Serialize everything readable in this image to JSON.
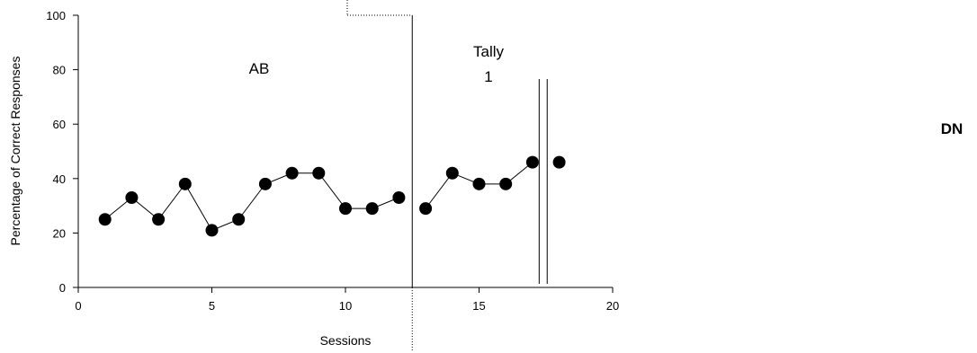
{
  "chart_data": {
    "type": "line",
    "title": "",
    "xlabel": "Sessions",
    "ylabel": "Percentage of Correct Responses",
    "xlim": [
      0,
      20
    ],
    "ylim": [
      0,
      100
    ],
    "x_ticks": [
      "0",
      "5",
      "10",
      "15",
      "20"
    ],
    "y_ticks": [
      "0",
      "20",
      "40",
      "60",
      "80",
      "100"
    ],
    "grid": false,
    "phase_labels": {
      "baseline": "AB",
      "intervention_line1": "Tally",
      "intervention_line2": "1"
    },
    "side_label": "DN",
    "phase_change_x": 12.5,
    "double_bar_x": [
      17.25,
      17.55
    ],
    "series": [
      {
        "segments": [
          {
            "x": [
              1,
              2,
              3,
              4,
              5,
              6,
              7,
              8,
              9,
              10,
              11,
              12
            ],
            "y": [
              25,
              33,
              25,
              38,
              21,
              25,
              38,
              42,
              42,
              29,
              29,
              33
            ]
          },
          {
            "x": [
              13,
              14,
              15,
              16,
              17
            ],
            "y": [
              29,
              42,
              38,
              38,
              46
            ]
          },
          {
            "x": [
              18
            ],
            "y": [
              46
            ]
          }
        ]
      }
    ]
  }
}
